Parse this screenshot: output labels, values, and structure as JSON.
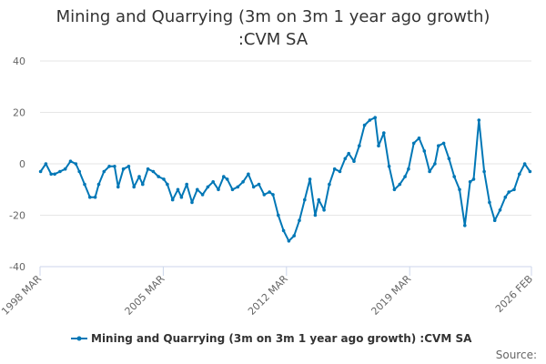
{
  "chart_data": {
    "type": "line",
    "title": "Mining and Quarrying (3m on 3m 1 year ago growth) :CVM SA",
    "xlabel": "",
    "ylabel": "",
    "ylim": [
      -40,
      40
    ],
    "yticks": [
      40,
      20,
      0,
      -20,
      -40
    ],
    "xlim": [
      1998.167,
      2026.083
    ],
    "xticks": [
      {
        "value": 1998.167,
        "label": "1998 MAR"
      },
      {
        "value": 2005.167,
        "label": "2005 MAR"
      },
      {
        "value": 2012.167,
        "label": "2012 MAR"
      },
      {
        "value": 2019.167,
        "label": "2019 MAR"
      },
      {
        "value": 2026.083,
        "label": "2026 FEB"
      }
    ],
    "grid": true,
    "legend": "bottom-center",
    "series": [
      {
        "name": "Mining and Quarrying (3m on 3m 1 year ago growth) :CVM SA",
        "color": "#0077b6",
        "x": [
          1998.2,
          1998.5,
          1998.8,
          1999.0,
          1999.3,
          1999.6,
          1999.9,
          2000.2,
          2000.4,
          2000.7,
          2001.0,
          2001.3,
          2001.5,
          2001.8,
          2002.1,
          2002.4,
          2002.6,
          2002.9,
          2003.2,
          2003.5,
          2003.8,
          2004.0,
          2004.3,
          2004.6,
          2004.9,
          2005.2,
          2005.4,
          2005.7,
          2006.0,
          2006.2,
          2006.5,
          2006.8,
          2007.1,
          2007.4,
          2007.7,
          2008.0,
          2008.3,
          2008.6,
          2008.8,
          2009.1,
          2009.4,
          2009.7,
          2010.0,
          2010.3,
          2010.6,
          2010.9,
          2011.2,
          2011.4,
          2011.7,
          2012.0,
          2012.3,
          2012.6,
          2012.9,
          2013.2,
          2013.5,
          2013.8,
          2014.0,
          2014.3,
          2014.6,
          2014.9,
          2015.2,
          2015.5,
          2015.7,
          2016.0,
          2016.3,
          2016.6,
          2016.9,
          2017.2,
          2017.4,
          2017.7,
          2018.0,
          2018.3,
          2018.6,
          2018.9,
          2019.1,
          2019.4,
          2019.7,
          2020.0,
          2020.3,
          2020.6,
          2020.8,
          2021.1,
          2021.4,
          2021.7,
          2022.0,
          2022.3,
          2022.6,
          2022.8,
          2023.1,
          2023.4,
          2023.7,
          2024.0,
          2024.3,
          2024.6,
          2024.8,
          2025.1,
          2025.4,
          2025.7,
          2026.0
        ],
        "values": [
          -3,
          0,
          -4,
          -4,
          -3,
          -2,
          1,
          0,
          -3,
          -8,
          -13,
          -13,
          -8,
          -3,
          -1,
          -1,
          -9,
          -2,
          -1,
          -9,
          -5,
          -8,
          -2,
          -3,
          -5,
          -6,
          -8,
          -14,
          -10,
          -13,
          -8,
          -15,
          -10,
          -12,
          -9,
          -7,
          -10,
          -5,
          -6,
          -10,
          -9,
          -7,
          -4,
          -9,
          -8,
          -12,
          -11,
          -12,
          -20,
          -26,
          -30,
          -28,
          -22,
          -14,
          -6,
          -20,
          -14,
          -18,
          -8,
          -2,
          -3,
          2,
          4,
          1,
          7,
          15,
          17,
          18,
          7,
          12,
          -1,
          -10,
          -8,
          -5,
          -2,
          8,
          10,
          5,
          -3,
          0,
          7,
          8,
          2,
          -5,
          -10,
          -24,
          -7,
          -6,
          17,
          -3,
          -15,
          -22,
          -18,
          -13,
          -11,
          -10,
          -4,
          0,
          -3
        ]
      }
    ]
  },
  "legend": {
    "label": "Mining and Quarrying (3m on 3m 1 year ago growth) :CVM SA"
  },
  "source": "Source:"
}
